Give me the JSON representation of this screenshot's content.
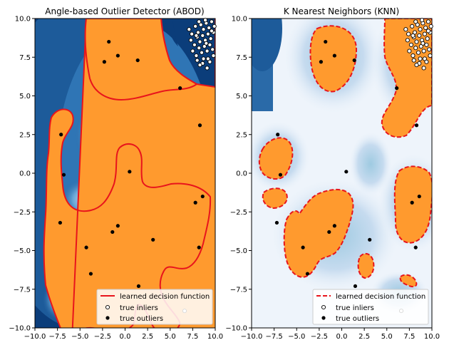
{
  "chart_data": [
    {
      "type": "scatter",
      "title": "Angle-based Outlier Detector (ABOD)",
      "xlim": [
        -10,
        10
      ],
      "ylim": [
        -10,
        10
      ],
      "xticks": [
        "−10.0",
        "−7.5",
        "−5.0",
        "−2.5",
        "0.0",
        "2.5",
        "5.0",
        "7.5",
        "10.0"
      ],
      "yticks": [
        "10.0",
        "7.5",
        "5.0",
        "2.5",
        "0.0",
        "−2.5",
        "−5.0",
        "−7.5",
        "−10.0"
      ],
      "legend": {
        "placement": "lower-right",
        "entries": [
          "learned decision function",
          "true inliers",
          "true outliers"
        ]
      },
      "decision_style": "solid",
      "series": [
        {
          "name": "true outliers",
          "points": [
            [
              -1.8,
              8.5
            ],
            [
              -2.3,
              7.2
            ],
            [
              -0.8,
              7.6
            ],
            [
              1.4,
              7.3
            ],
            [
              6.1,
              5.5
            ],
            [
              8.3,
              3.1
            ],
            [
              -7.1,
              2.5
            ],
            [
              -6.8,
              -0.1
            ],
            [
              0.5,
              0.1
            ],
            [
              -7.2,
              -3.2
            ],
            [
              -0.8,
              -3.4
            ],
            [
              -1.4,
              -3.8
            ],
            [
              3.1,
              -4.3
            ],
            [
              -4.3,
              -4.8
            ],
            [
              8.2,
              -4.8
            ],
            [
              7.8,
              -1.9
            ],
            [
              8.6,
              -1.5
            ],
            [
              -3.8,
              -6.5
            ],
            [
              1.5,
              -7.3
            ]
          ]
        },
        {
          "name": "true inliers",
          "points": [
            [
              7.1,
              9.3
            ],
            [
              7.4,
              9.0
            ],
            [
              7.8,
              9.5
            ],
            [
              8.1,
              9.1
            ],
            [
              8.4,
              9.6
            ],
            [
              8.7,
              9.3
            ],
            [
              9.0,
              9.7
            ],
            [
              9.3,
              9.4
            ],
            [
              9.6,
              9.8
            ],
            [
              9.9,
              9.5
            ],
            [
              7.3,
              8.6
            ],
            [
              7.7,
              8.3
            ],
            [
              8.0,
              8.8
            ],
            [
              8.3,
              8.5
            ],
            [
              8.6,
              8.9
            ],
            [
              8.9,
              8.6
            ],
            [
              9.2,
              9.0
            ],
            [
              9.5,
              8.7
            ],
            [
              9.8,
              9.1
            ],
            [
              7.5,
              7.9
            ],
            [
              7.9,
              7.6
            ],
            [
              8.2,
              8.1
            ],
            [
              8.5,
              7.8
            ],
            [
              8.8,
              8.2
            ],
            [
              9.1,
              7.9
            ],
            [
              9.4,
              8.3
            ],
            [
              9.7,
              8.0
            ],
            [
              8.0,
              7.3
            ],
            [
              8.6,
              7.1
            ],
            [
              9.2,
              7.4
            ],
            [
              8.3,
              7.0
            ],
            [
              8.7,
              7.4
            ],
            [
              9.4,
              7.2
            ],
            [
              9.8,
              7.6
            ],
            [
              9.1,
              6.8
            ],
            [
              8.9,
              9.9
            ],
            [
              8.2,
              9.8
            ],
            [
              9.6,
              9.2
            ],
            [
              7.9,
              8.9
            ],
            [
              9.0,
              8.4
            ],
            [
              6.6,
              -8.9
            ]
          ]
        }
      ]
    },
    {
      "type": "scatter",
      "title": "K Nearest Neighbors (KNN)",
      "xlim": [
        -10,
        10
      ],
      "ylim": [
        -10,
        10
      ],
      "xticks": [
        "−10.0",
        "−7.5",
        "−5.0",
        "−2.5",
        "0.0",
        "2.5",
        "5.0",
        "7.5",
        "10.0"
      ],
      "yticks": [
        "10.0",
        "7.5",
        "5.0",
        "2.5",
        "0.0",
        "−2.5",
        "−5.0",
        "−7.5",
        "−10.0"
      ],
      "legend": {
        "placement": "lower-right",
        "entries": [
          "learned decision function",
          "true inliers",
          "true outliers"
        ]
      },
      "decision_style": "dashed",
      "series": [
        {
          "name": "true outliers",
          "points": [
            [
              -1.8,
              8.5
            ],
            [
              -2.3,
              7.2
            ],
            [
              -0.8,
              7.6
            ],
            [
              1.4,
              7.3
            ],
            [
              6.1,
              5.5
            ],
            [
              8.3,
              3.1
            ],
            [
              -7.1,
              2.5
            ],
            [
              -6.8,
              -0.1
            ],
            [
              0.5,
              0.1
            ],
            [
              -7.2,
              -3.2
            ],
            [
              -0.8,
              -3.4
            ],
            [
              -1.4,
              -3.8
            ],
            [
              3.1,
              -4.3
            ],
            [
              -4.3,
              -4.8
            ],
            [
              8.2,
              -4.8
            ],
            [
              7.8,
              -1.9
            ],
            [
              8.6,
              -1.5
            ],
            [
              -3.8,
              -6.5
            ],
            [
              1.5,
              -7.3
            ]
          ]
        },
        {
          "name": "true inliers",
          "points": [
            [
              7.1,
              9.3
            ],
            [
              7.4,
              9.0
            ],
            [
              7.8,
              9.5
            ],
            [
              8.1,
              9.1
            ],
            [
              8.4,
              9.6
            ],
            [
              8.7,
              9.3
            ],
            [
              9.0,
              9.7
            ],
            [
              9.3,
              9.4
            ],
            [
              9.6,
              9.8
            ],
            [
              9.9,
              9.5
            ],
            [
              7.3,
              8.6
            ],
            [
              7.7,
              8.3
            ],
            [
              8.0,
              8.8
            ],
            [
              8.3,
              8.5
            ],
            [
              8.6,
              8.9
            ],
            [
              8.9,
              8.6
            ],
            [
              9.2,
              9.0
            ],
            [
              9.5,
              8.7
            ],
            [
              9.8,
              9.1
            ],
            [
              7.5,
              7.9
            ],
            [
              7.9,
              7.6
            ],
            [
              8.2,
              8.1
            ],
            [
              8.5,
              7.8
            ],
            [
              8.8,
              8.2
            ],
            [
              9.1,
              7.9
            ],
            [
              9.4,
              8.3
            ],
            [
              9.7,
              8.0
            ],
            [
              8.0,
              7.3
            ],
            [
              8.6,
              7.1
            ],
            [
              9.2,
              7.4
            ],
            [
              8.3,
              7.0
            ],
            [
              8.7,
              7.4
            ],
            [
              9.4,
              7.2
            ],
            [
              9.8,
              7.6
            ],
            [
              9.1,
              6.8
            ],
            [
              8.9,
              9.9
            ],
            [
              8.2,
              9.8
            ],
            [
              9.6,
              9.2
            ],
            [
              7.9,
              8.9
            ],
            [
              9.0,
              8.4
            ],
            [
              6.6,
              -8.9
            ]
          ]
        }
      ]
    }
  ],
  "colors": {
    "inlier_region": "#ff9a2e",
    "boundary": "#e8141c",
    "deep_outlier": "#08306b",
    "mid_outlier": "#4a90c8",
    "light_outlier": "#dbe9f6"
  }
}
